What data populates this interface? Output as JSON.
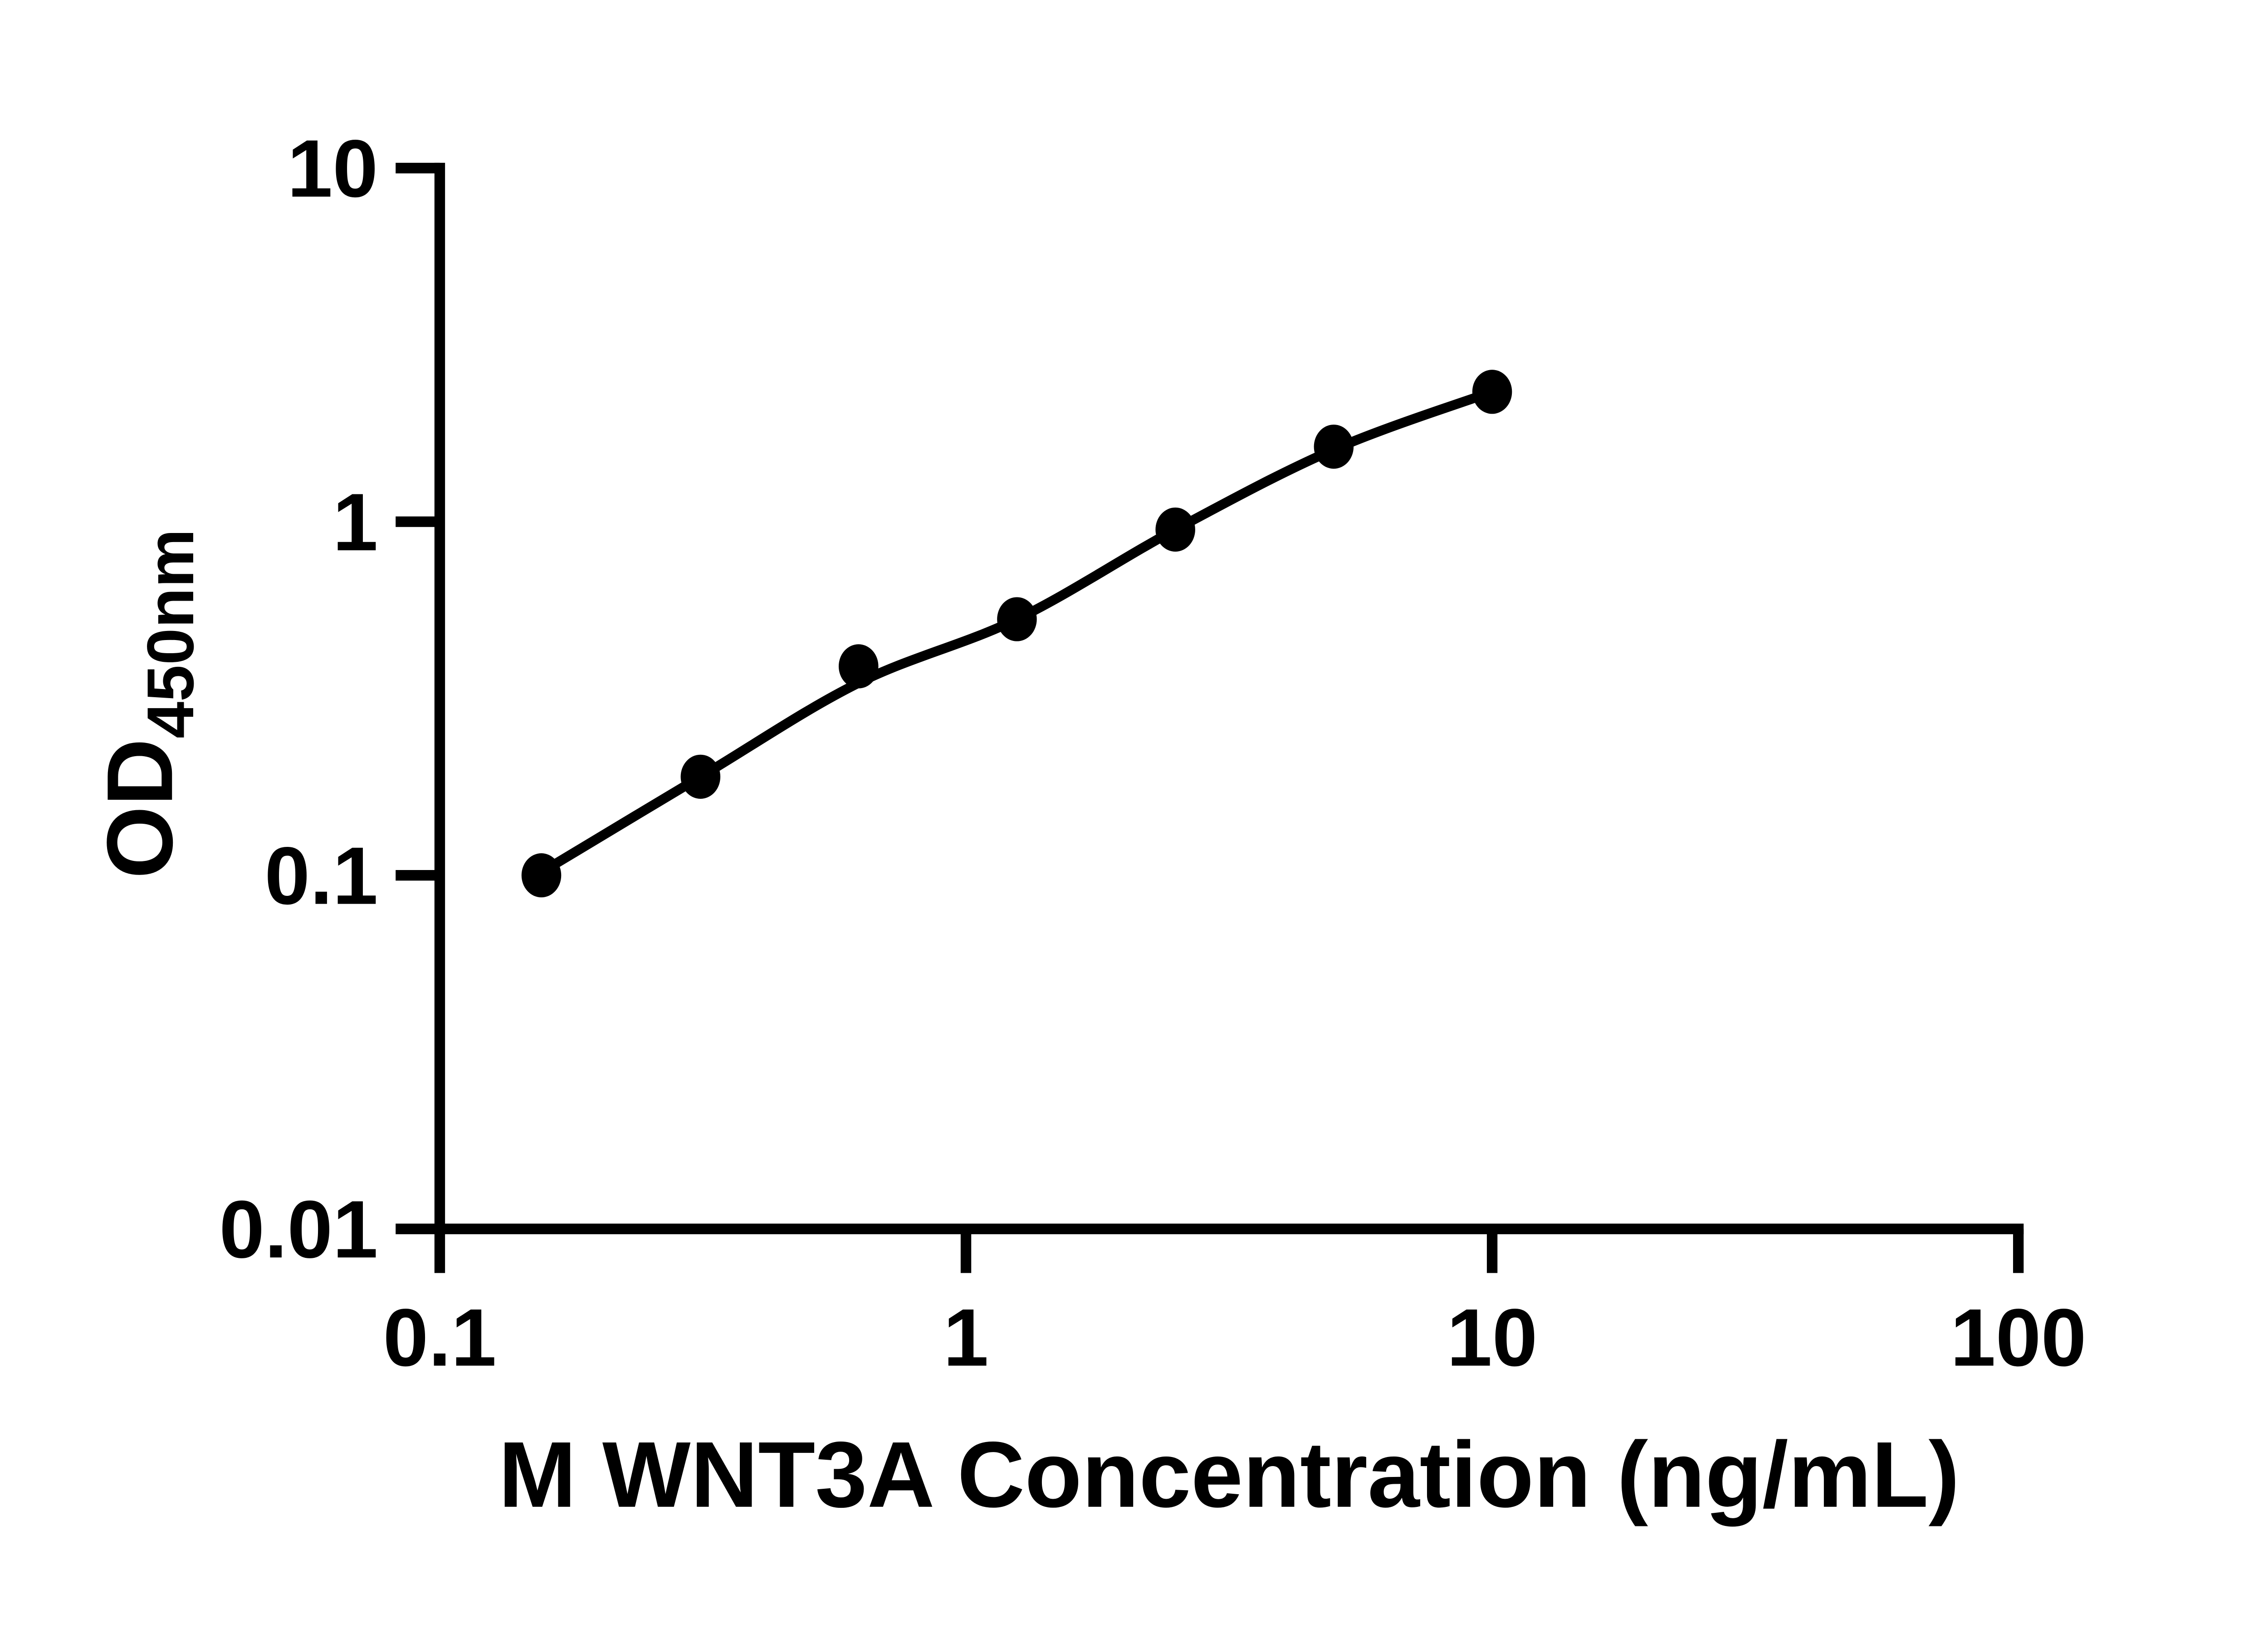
{
  "page": {
    "background": "#ffffff",
    "ink_color": "#000000"
  },
  "chart_data": {
    "type": "scatter",
    "title": "",
    "xlabel": "M WNT3A Concentration (ng/mL)",
    "ylabel": {
      "main": "OD",
      "subscript": "450nm"
    },
    "x_scale": "log",
    "y_scale": "log",
    "xlim": [
      0.1,
      100
    ],
    "ylim": [
      0.01,
      10
    ],
    "grid": false,
    "legend": false,
    "x_ticks": [
      {
        "value": 0.1,
        "label": "0.1"
      },
      {
        "value": 1,
        "label": "1"
      },
      {
        "value": 10,
        "label": "10"
      },
      {
        "value": 100,
        "label": "100"
      }
    ],
    "y_ticks": [
      {
        "value": 0.01,
        "label": "0.01"
      },
      {
        "value": 0.1,
        "label": "0.1"
      },
      {
        "value": 1,
        "label": "1"
      },
      {
        "value": 10,
        "label": "10"
      }
    ],
    "series": [
      {
        "marker": "filled-circle",
        "color": "#000000",
        "points": [
          {
            "x": 0.156,
            "y": 0.1
          },
          {
            "x": 0.313,
            "y": 0.19
          },
          {
            "x": 0.625,
            "y": 0.39
          },
          {
            "x": 1.25,
            "y": 0.53
          },
          {
            "x": 2.5,
            "y": 0.95
          },
          {
            "x": 5,
            "y": 1.63
          },
          {
            "x": 10,
            "y": 2.33
          }
        ]
      }
    ],
    "fit_line": {
      "color": "#000000",
      "anchors": [
        {
          "x": 0.156,
          "y": 0.102
        },
        {
          "x": 0.313,
          "y": 0.19
        },
        {
          "x": 0.625,
          "y": 0.35
        },
        {
          "x": 1.25,
          "y": 0.53
        },
        {
          "x": 2.5,
          "y": 0.95
        },
        {
          "x": 5,
          "y": 1.6
        },
        {
          "x": 10,
          "y": 2.33
        }
      ]
    }
  }
}
